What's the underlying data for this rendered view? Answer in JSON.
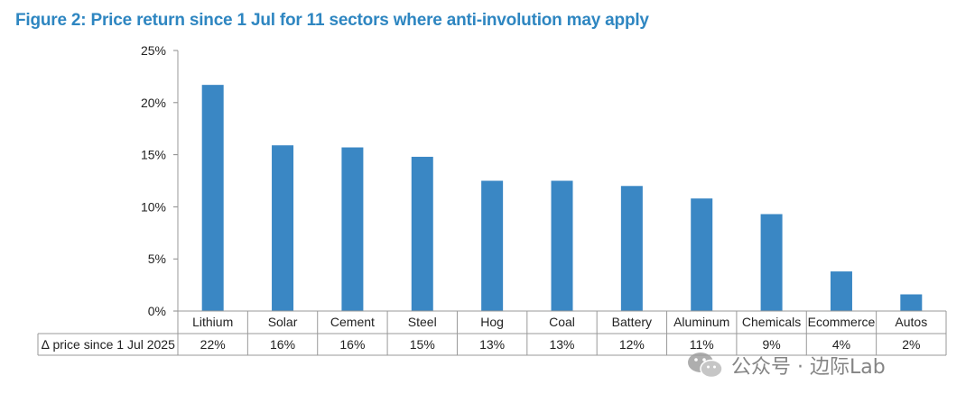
{
  "figure_title": "Figure 2: Price return since 1 Jul for 11 sectors where anti-involution may apply",
  "chart_data": {
    "type": "bar",
    "title": "Figure 2: Price return since 1 Jul for 11 sectors where anti-involution may apply",
    "categories": [
      "Lithium",
      "Solar",
      "Cement",
      "Steel",
      "Hog",
      "Coal",
      "Battery",
      "Aluminum",
      "Chemicals",
      "Ecommerce",
      "Autos"
    ],
    "values": [
      21.7,
      15.9,
      15.7,
      14.8,
      12.5,
      12.5,
      12.0,
      10.8,
      9.3,
      3.8,
      1.6
    ],
    "series": [
      {
        "values": [
          21.7,
          15.9,
          15.7,
          14.8,
          12.5,
          12.5,
          12.0,
          10.8,
          9.3,
          3.8,
          1.6
        ]
      }
    ],
    "ylim": [
      0,
      25
    ],
    "yticks": [
      0,
      5,
      10,
      15,
      20,
      25
    ],
    "ytick_labels": [
      "0%",
      "5%",
      "10%",
      "15%",
      "20%",
      "25%"
    ],
    "xlabel": "",
    "ylabel": "",
    "grid": false,
    "legend": "none",
    "bar_color": "#3a87c4",
    "table": {
      "row_label": "∆ price since 1 Jul 2025",
      "values": [
        "22%",
        "16%",
        "16%",
        "15%",
        "13%",
        "13%",
        "12%",
        "11%",
        "9%",
        "4%",
        "2%"
      ]
    }
  },
  "watermark": {
    "text": "公众号 · 边际Lab",
    "icon": "wechat-icon"
  }
}
